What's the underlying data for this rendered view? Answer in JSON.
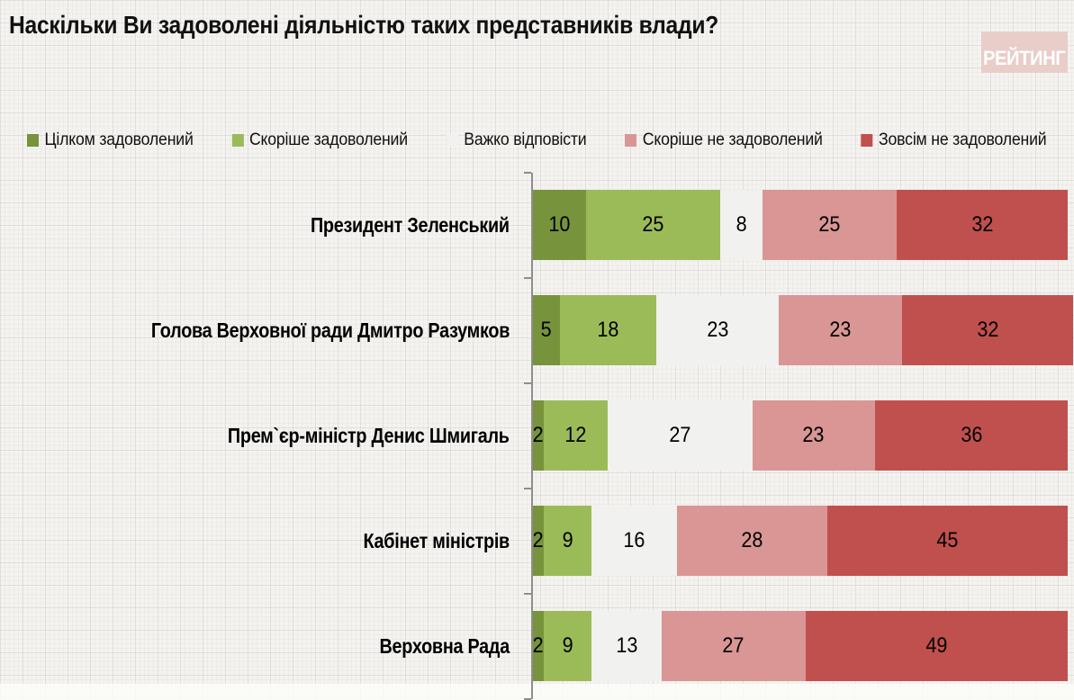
{
  "title": "Наскільки Ви задоволені діяльністю таких представників влади?",
  "logo": {
    "text": "РЕЙТИНГ",
    "bg_color": "#e8cdc8",
    "text_color": "#ffffff"
  },
  "chart_data": {
    "type": "bar",
    "orientation": "horizontal",
    "stacked": true,
    "title": "Наскільки Ви задоволені діяльністю таких представників влади?",
    "legend_position": "top",
    "grid": false,
    "xlim": [
      0,
      100
    ],
    "axis_color": "#8e8e8e",
    "value_labels": "inside",
    "categories": [
      "Президент Зеленський",
      "Голова Верховної ради Дмитро Разумков",
      "Прем`єр-міністр Денис Шмигаль",
      "Кабінет міністрів",
      "Верховна Рада"
    ],
    "series": [
      {
        "name": "Цілком задоволений",
        "color": "#77933C",
        "values": [
          10,
          5,
          2,
          2,
          2
        ]
      },
      {
        "name": "Скоріше задоволений",
        "color": "#9BBB59",
        "values": [
          25,
          18,
          12,
          9,
          9
        ]
      },
      {
        "name": "Важко відповісти",
        "color": "#F1F1EF",
        "values": [
          8,
          23,
          27,
          16,
          13
        ]
      },
      {
        "name": "Скоріше не задоволений",
        "color": "#D99694",
        "values": [
          25,
          23,
          23,
          28,
          27
        ]
      },
      {
        "name": "Зовсім не задоволений",
        "color": "#C0504D",
        "values": [
          32,
          32,
          36,
          45,
          49
        ]
      }
    ]
  }
}
